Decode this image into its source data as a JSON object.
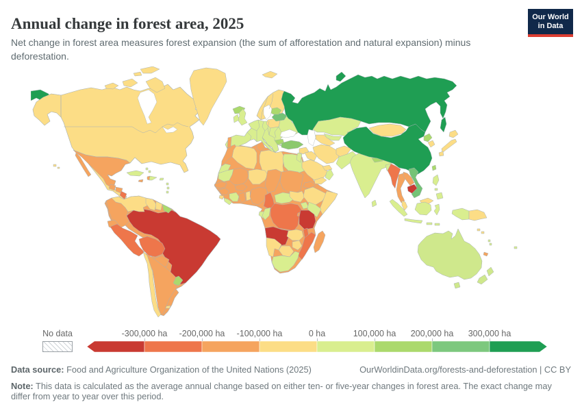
{
  "header": {
    "title": "Annual change in forest area, 2025",
    "subtitle": "Net change in forest area measures forest expansion (the sum of afforestation and natural expansion) minus deforestation."
  },
  "logo": {
    "line1": "Our World",
    "line2": "in Data"
  },
  "legend": {
    "no_data_label": "No data",
    "tick_labels": [
      "-300,000 ha",
      "-200,000 ha",
      "-100,000 ha",
      "0 ha",
      "100,000 ha",
      "200,000 ha",
      "300,000 ha"
    ],
    "colors": [
      "#c93a32",
      "#ee764b",
      "#f5a45f",
      "#fcdd86",
      "#d9ee8f",
      "#abd96c",
      "#7dc87e",
      "#1f9e53"
    ]
  },
  "footer": {
    "source_label": "Data source:",
    "source_text": " Food and Agriculture Organization of the United Nations (2025)",
    "link_text": "OurWorldinData.org/forests-and-deforestation | CC BY",
    "note_label": "Note:",
    "note_text": " This data is calculated as the average annual change based on either ten- or five-year changes in forest area. The exact change may differ from year to year over this period."
  },
  "map": {
    "base_colors": {
      "north-america": "#fcdd86",
      "south-america": "#f5a45f",
      "africa": "#f5a45f",
      "europe": "#d9ee8f",
      "scandinavia": "#fcdd86"
    },
    "countries": {
      "russia": "#1f9e53",
      "chukotka": "#1f9e53",
      "novaya-zemlya": "#1f9e53",
      "sakhalin": "#1f9e53",
      "china": "#1f9e53",
      "greenland": "#fcdd86",
      "svalbard": "#fcdd86",
      "alaska": "#fcdd86",
      "baffin-island": "#fcdd86",
      "victoria-island": "#fcdd86",
      "ellesmere-island": "#fcdd86",
      "arctic-island-small": "#fcdd86",
      "hawaii": "#fcdd86",
      "poland": "#fcdd86",
      "mongolia": "#fcdd86",
      "japan-hokkaido": "#fcdd86",
      "japan-honshu": "#fcdd86",
      "japan-kyushu": "#fcdd86",
      "south-korea": "#fcdd86",
      "saudi-arabia": "#fcdd86",
      "iraq": "#fcdd86",
      "iran": "#fcdd86",
      "afghanistan": "#fcdd86",
      "yemen": "#fcdd86",
      "syria": "#fcdd86",
      "libya": "#fcdd86",
      "algeria": "#fcdd86",
      "niger": "#fcdd86",
      "ethiopia": "#fcdd86",
      "somalia": "#fcdd86",
      "south-sudan": "#fcdd86",
      "zambia": "#fcdd86",
      "zimbabwe": "#fcdd86",
      "botswana": "#fcdd86",
      "namibia": "#fcdd86",
      "venezuela": "#fcdd86",
      "guyana": "#fcdd86",
      "suriname": "#fcdd86",
      "chile": "#fcdd86",
      "turkmenistan": "#fcdd86",
      "malaysia-peninsula": "#fcdd86",
      "malaysia-borneo": "#fcdd86",
      "papua-new-guinea": "#fcdd86",
      "togo-benin": "#fcdd86",
      "uae": "#fcdd86",
      "falklands": "#fcdd86",
      "sierra-leone": "#fcdd86",
      "solomon-islands": "#fcdd86",
      "mexico": "#f5a45f",
      "baja": "#f5a45f",
      "guatemala": "#f5a45f",
      "honduras": "#f5a45f",
      "panama": "#f5a45f",
      "haiti": "#f5a45f",
      "jamaica": "#f5a45f",
      "colombia": "#f5a45f",
      "ecuador": "#f5a45f",
      "argentina": "#f5a45f",
      "paraguay": "#f5a45f",
      "morocco": "#f5a45f",
      "tunisia": "#f5a45f",
      "mali": "#f5a45f",
      "chad": "#f5a45f",
      "sudan": "#f5a45f",
      "senegal": "#f5a45f",
      "guinea": "#f5a45f",
      "ghana": "#f5a45f",
      "burkina-faso": "#f5a45f",
      "nigeria": "#f5a45f",
      "eritrea": "#f5a45f",
      "madagascar": "#f5a45f",
      "thailand": "#f5a45f",
      "laos": "#f5a45f",
      "new-caledonia": "#f5a45f",
      "portugal": "#f5a45f",
      "rwanda-burundi": "#f5a45f",
      "nicaragua": "#ee764b",
      "peru": "#ee764b",
      "bolivia": "#ee764b",
      "drc": "#ee764b",
      "cameroon": "#ee764b",
      "myanmar": "#ee764b",
      "mozambique": "#ee764b",
      "malawi": "#ee764b",
      "brazil": "#c93a32",
      "angola": "#c93a32",
      "tanzania": "#c93a32",
      "cambodia": "#c93a32",
      "kazakhstan": "#d9ee8f",
      "india": "#d9ee8f",
      "egypt": "#d9ee8f",
      "western-sahara": "#d9ee8f",
      "mauritania": "#d9ee8f",
      "cote-divoire": "#d9ee8f",
      "liberia": "#d9ee8f",
      "central-african-republic": "#d9ee8f",
      "uganda": "#d9ee8f",
      "kenya": "#d9ee8f",
      "gabon": "#d9ee8f",
      "congo": "#d9ee8f",
      "south-africa": "#d9ee8f",
      "cuba": "#d9ee8f",
      "dominican-republic": "#d9ee8f",
      "puerto-rico": "#d9ee8f",
      "lesser-antilles": "#d9ee8f",
      "bahamas": "#d9ee8f",
      "sumatra": "#d9ee8f",
      "java": "#d9ee8f",
      "kalimantan": "#d9ee8f",
      "sulawesi": "#d9ee8f",
      "lesser-sunda": "#d9ee8f",
      "west-papua": "#d9ee8f",
      "philippines-luzon": "#d9ee8f",
      "philippines-visayas": "#d9ee8f",
      "philippines-mindanao": "#d9ee8f",
      "bangladesh": "#d9ee8f",
      "sri-lanka": "#d9ee8f",
      "pakistan": "#d9ee8f",
      "uzbekistan": "#d9ee8f",
      "oman": "#d9ee8f",
      "levant": "#d9ee8f",
      "fiji": "#d9ee8f",
      "vanuatu": "#d9ee8f",
      "uk": "#d9ee8f",
      "ireland": "#d9ee8f",
      "iceland": "#abd96c",
      "baltics": "#abd96c",
      "bulgaria": "#abd96c",
      "north-korea": "#abd96c",
      "taiwan": "#abd96c",
      "nepal": "#abd96c",
      "uruguay": "#abd96c",
      "french-guiana": "#abd96c",
      "kyrgyzstan": "#abd96c",
      "tajikistan": "#abd96c",
      "costa-rica": "#abd96c",
      "belarus": "#74c376",
      "vietnam": "#74c376",
      "turkey": "#8cc96d",
      "australia": "#cfe88c",
      "tasmania": "#cfe88c",
      "new-zealand-north": "#cfe88c",
      "new-zealand-south": "#cfe88c"
    },
    "water_color": "#ffffff",
    "border_color": "#a7b1b5"
  }
}
